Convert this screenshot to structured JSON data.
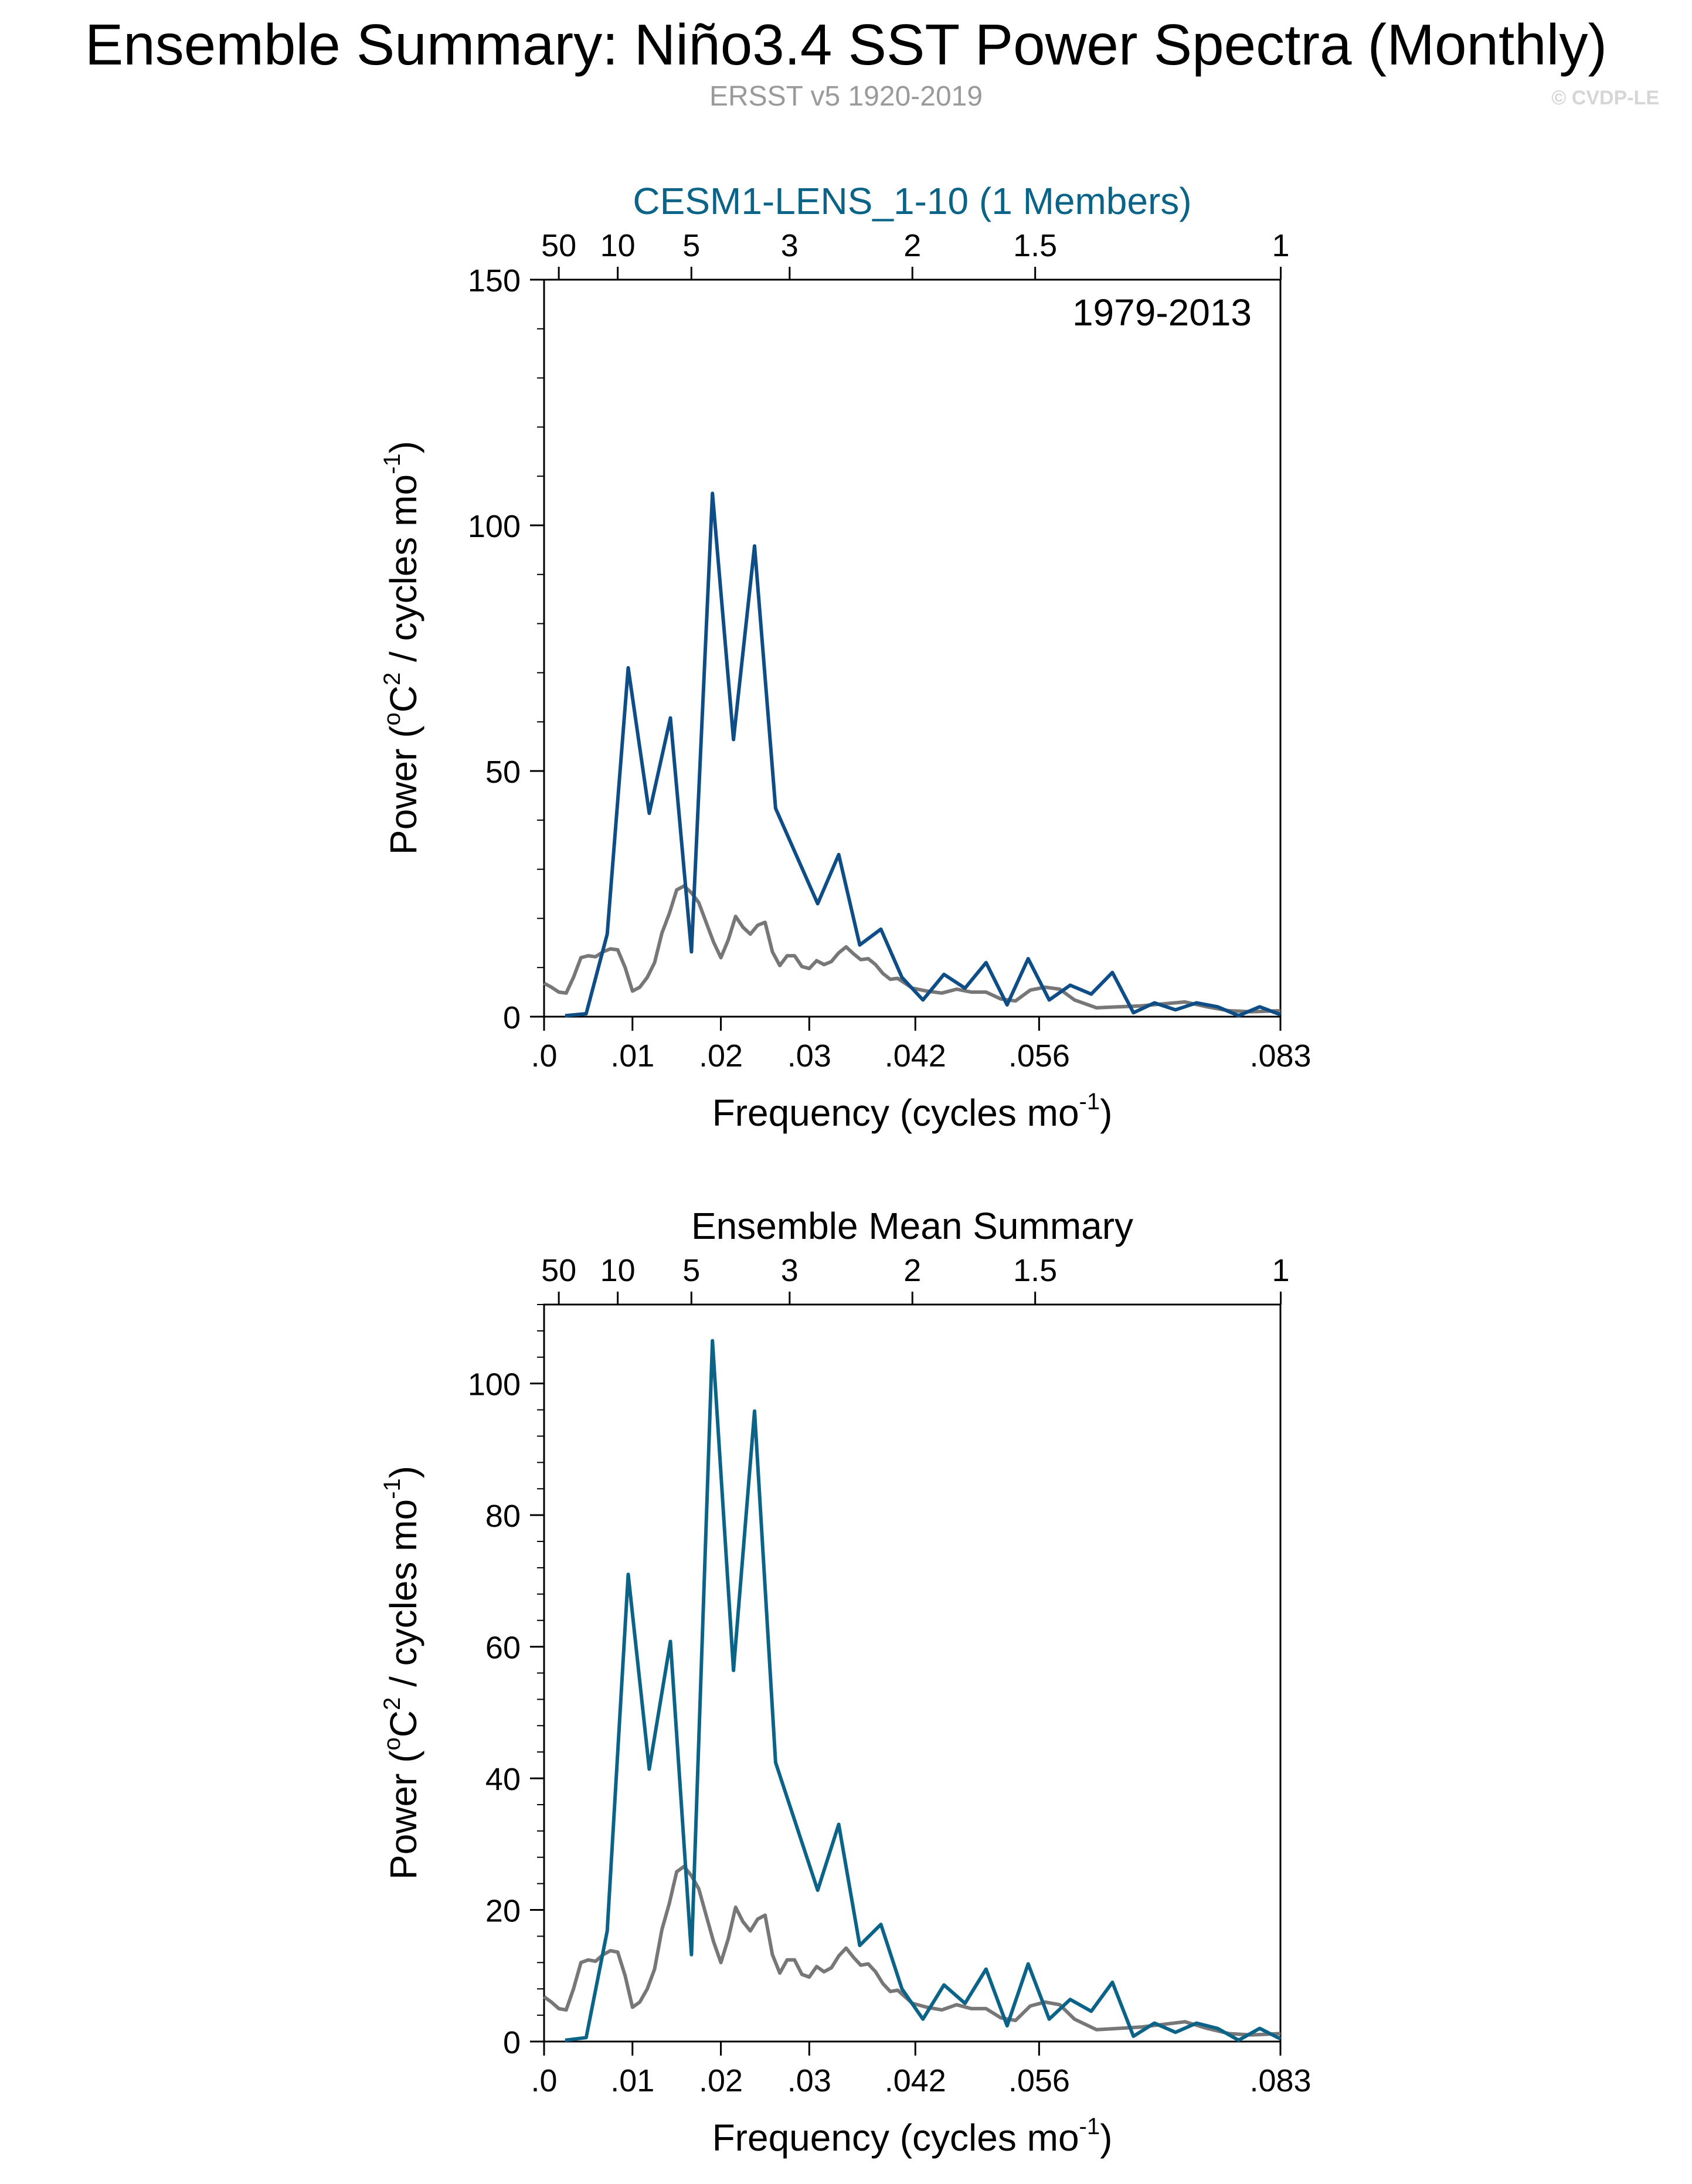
{
  "header": {
    "title": "Ensemble Summary: Niño3.4 SST Power Spectra (Monthly)",
    "subtitle": "ERSST v5 1920-2019",
    "watermark": "© CVDP-LE"
  },
  "colors": {
    "panel1_line": "#0e4d85",
    "panel2_line": "#0b6487",
    "reference_line": "#777777",
    "panel1_title": "#0b6487",
    "subtitle": "#9a9a9a",
    "watermark": "#d6d6d6"
  },
  "chart_data": [
    {
      "type": "line",
      "title": "CESM1-LENS_1-10 (1 Members)",
      "annotation": "1979-2013",
      "xlabel_main": "Frequency (cycles mo",
      "xlabel_sup": "-1",
      "xlabel_end": ")",
      "ylabel_main": "Power (",
      "ylabel_o": "o",
      "ylabel_c": "C",
      "ylabel_sq": "2",
      "ylabel_mid": " / cycles mo",
      "ylabel_sup": "-1",
      "ylabel_end": ")",
      "xlim": [
        0,
        0.0833
      ],
      "ylim": [
        0,
        150
      ],
      "yticks": [
        0,
        50,
        100,
        150
      ],
      "ytick_labels": [
        "0",
        "50",
        "100",
        "150"
      ],
      "xticks": [
        0,
        0.01,
        0.02,
        0.03,
        0.042,
        0.056,
        0.0833
      ],
      "xtick_labels": [
        ".0",
        ".01",
        ".02",
        ".03",
        ".042",
        ".056",
        ".083"
      ],
      "period_ticks_years": [
        50,
        10,
        5,
        3,
        2,
        1.5,
        1
      ],
      "period_tick_labels": [
        "50",
        "10",
        "5",
        "3",
        "2",
        "1.5",
        "1"
      ],
      "series": [
        {
          "name": "CESM1-LENS_1-10",
          "x": [
            0.00238,
            0.00476,
            0.00714,
            0.00952,
            0.0119,
            0.01429,
            0.01667,
            0.01905,
            0.02143,
            0.02381,
            0.02619,
            0.03095,
            0.03333,
            0.03571,
            0.0381,
            0.04048,
            0.04286,
            0.04524,
            0.04762,
            0.05,
            0.05238,
            0.05476,
            0.05714,
            0.05952,
            0.0619,
            0.06429,
            0.06667,
            0.06905,
            0.07143,
            0.07381,
            0.07619,
            0.07857,
            0.08095,
            0.0833
          ],
          "values": [
            0.2,
            0.6,
            16.8,
            71.0,
            41.4,
            60.8,
            13.2,
            106.5,
            56.4,
            95.8,
            42.4,
            23.0,
            33.0,
            14.6,
            17.8,
            8.0,
            3.4,
            8.6,
            5.8,
            11.0,
            2.4,
            11.8,
            3.4,
            6.4,
            4.6,
            9.0,
            0.8,
            2.8,
            1.4,
            2.8,
            2.0,
            0.2,
            2.0,
            0.4
          ]
        },
        {
          "name": "ERSST v5 1920-2019",
          "x": [
            0.0,
            0.00083,
            0.00167,
            0.0025,
            0.00333,
            0.00417,
            0.005,
            0.00583,
            0.00667,
            0.0075,
            0.00833,
            0.00917,
            0.01,
            0.01083,
            0.01167,
            0.0125,
            0.01333,
            0.01417,
            0.015,
            0.01583,
            0.01667,
            0.0175,
            0.01833,
            0.01917,
            0.02,
            0.02083,
            0.02167,
            0.0225,
            0.02333,
            0.02417,
            0.025,
            0.02583,
            0.02667,
            0.0275,
            0.02833,
            0.02917,
            0.03,
            0.03083,
            0.03167,
            0.0325,
            0.03333,
            0.03417,
            0.035,
            0.03583,
            0.03667,
            0.0375,
            0.03833,
            0.03917,
            0.04,
            0.04167,
            0.04333,
            0.045,
            0.04667,
            0.04833,
            0.05,
            0.05167,
            0.05333,
            0.055,
            0.05667,
            0.05833,
            0.06,
            0.0625,
            0.065,
            0.0675,
            0.07,
            0.0725,
            0.075,
            0.0775,
            0.08,
            0.0833
          ],
          "values": [
            6.8,
            6.0,
            5.0,
            4.8,
            8.0,
            12.0,
            12.4,
            12.2,
            13.2,
            13.8,
            13.6,
            10.0,
            5.2,
            6.0,
            8.0,
            11.0,
            17.0,
            21.0,
            25.8,
            26.6,
            25.2,
            23.2,
            19.2,
            15.2,
            12.0,
            15.6,
            20.4,
            18.2,
            16.8,
            18.6,
            19.2,
            13.2,
            10.4,
            12.4,
            12.4,
            10.2,
            9.8,
            11.4,
            10.6,
            11.2,
            13.0,
            14.2,
            12.8,
            11.6,
            11.8,
            10.6,
            8.8,
            7.6,
            7.8,
            5.8,
            5.2,
            4.8,
            5.6,
            5.0,
            5.0,
            3.6,
            3.2,
            5.4,
            6.0,
            5.6,
            3.4,
            1.8,
            2.0,
            2.2,
            2.6,
            3.0,
            2.0,
            1.2,
            1.0,
            1.2
          ]
        }
      ]
    },
    {
      "type": "line",
      "title": "Ensemble Mean Summary",
      "xlabel_main": "Frequency (cycles mo",
      "xlabel_sup": "-1",
      "xlabel_end": ")",
      "ylabel_main": "Power (",
      "ylabel_o": "o",
      "ylabel_c": "C",
      "ylabel_sq": "2",
      "ylabel_mid": " / cycles mo",
      "ylabel_sup": "-1",
      "ylabel_end": ")",
      "xlim": [
        0,
        0.0833
      ],
      "ylim": [
        0,
        112
      ],
      "yticks": [
        0,
        20,
        40,
        60,
        80,
        100
      ],
      "ytick_labels": [
        "0",
        "20",
        "40",
        "60",
        "80",
        "100"
      ],
      "xticks": [
        0,
        0.01,
        0.02,
        0.03,
        0.042,
        0.056,
        0.0833
      ],
      "xtick_labels": [
        ".0",
        ".01",
        ".02",
        ".03",
        ".042",
        ".056",
        ".083"
      ],
      "period_ticks_years": [
        50,
        10,
        5,
        3,
        2,
        1.5,
        1
      ],
      "period_tick_labels": [
        "50",
        "10",
        "5",
        "3",
        "2",
        "1.5",
        "1"
      ],
      "series": [
        {
          "name": "Ensemble Mean",
          "x": [
            0.00238,
            0.00476,
            0.00714,
            0.00952,
            0.0119,
            0.01429,
            0.01667,
            0.01905,
            0.02143,
            0.02381,
            0.02619,
            0.03095,
            0.03333,
            0.03571,
            0.0381,
            0.04048,
            0.04286,
            0.04524,
            0.04762,
            0.05,
            0.05238,
            0.05476,
            0.05714,
            0.05952,
            0.0619,
            0.06429,
            0.06667,
            0.06905,
            0.07143,
            0.07381,
            0.07619,
            0.07857,
            0.08095,
            0.0833
          ],
          "values": [
            0.2,
            0.6,
            16.8,
            71.0,
            41.4,
            60.8,
            13.2,
            106.5,
            56.4,
            95.8,
            42.4,
            23.0,
            33.0,
            14.6,
            17.8,
            8.0,
            3.4,
            8.6,
            5.8,
            11.0,
            2.4,
            11.8,
            3.4,
            6.4,
            4.6,
            9.0,
            0.8,
            2.8,
            1.4,
            2.8,
            2.0,
            0.2,
            2.0,
            0.4
          ]
        },
        {
          "name": "ERSST v5 1920-2019",
          "x": [
            0.0,
            0.00083,
            0.00167,
            0.0025,
            0.00333,
            0.00417,
            0.005,
            0.00583,
            0.00667,
            0.0075,
            0.00833,
            0.00917,
            0.01,
            0.01083,
            0.01167,
            0.0125,
            0.01333,
            0.01417,
            0.015,
            0.01583,
            0.01667,
            0.0175,
            0.01833,
            0.01917,
            0.02,
            0.02083,
            0.02167,
            0.0225,
            0.02333,
            0.02417,
            0.025,
            0.02583,
            0.02667,
            0.0275,
            0.02833,
            0.02917,
            0.03,
            0.03083,
            0.03167,
            0.0325,
            0.03333,
            0.03417,
            0.035,
            0.03583,
            0.03667,
            0.0375,
            0.03833,
            0.03917,
            0.04,
            0.04167,
            0.04333,
            0.045,
            0.04667,
            0.04833,
            0.05,
            0.05167,
            0.05333,
            0.055,
            0.05667,
            0.05833,
            0.06,
            0.0625,
            0.065,
            0.0675,
            0.07,
            0.0725,
            0.075,
            0.0775,
            0.08,
            0.0833
          ],
          "values": [
            6.8,
            6.0,
            5.0,
            4.8,
            8.0,
            12.0,
            12.4,
            12.2,
            13.2,
            13.8,
            13.6,
            10.0,
            5.2,
            6.0,
            8.0,
            11.0,
            17.0,
            21.0,
            25.8,
            26.6,
            25.2,
            23.2,
            19.2,
            15.2,
            12.0,
            15.6,
            20.4,
            18.2,
            16.8,
            18.6,
            19.2,
            13.2,
            10.4,
            12.4,
            12.4,
            10.2,
            9.8,
            11.4,
            10.6,
            11.2,
            13.0,
            14.2,
            12.8,
            11.6,
            11.8,
            10.6,
            8.8,
            7.6,
            7.8,
            5.8,
            5.2,
            4.8,
            5.6,
            5.0,
            5.0,
            3.6,
            3.2,
            5.4,
            6.0,
            5.6,
            3.4,
            1.8,
            2.0,
            2.2,
            2.6,
            3.0,
            2.0,
            1.2,
            1.0,
            1.2
          ]
        }
      ]
    }
  ]
}
